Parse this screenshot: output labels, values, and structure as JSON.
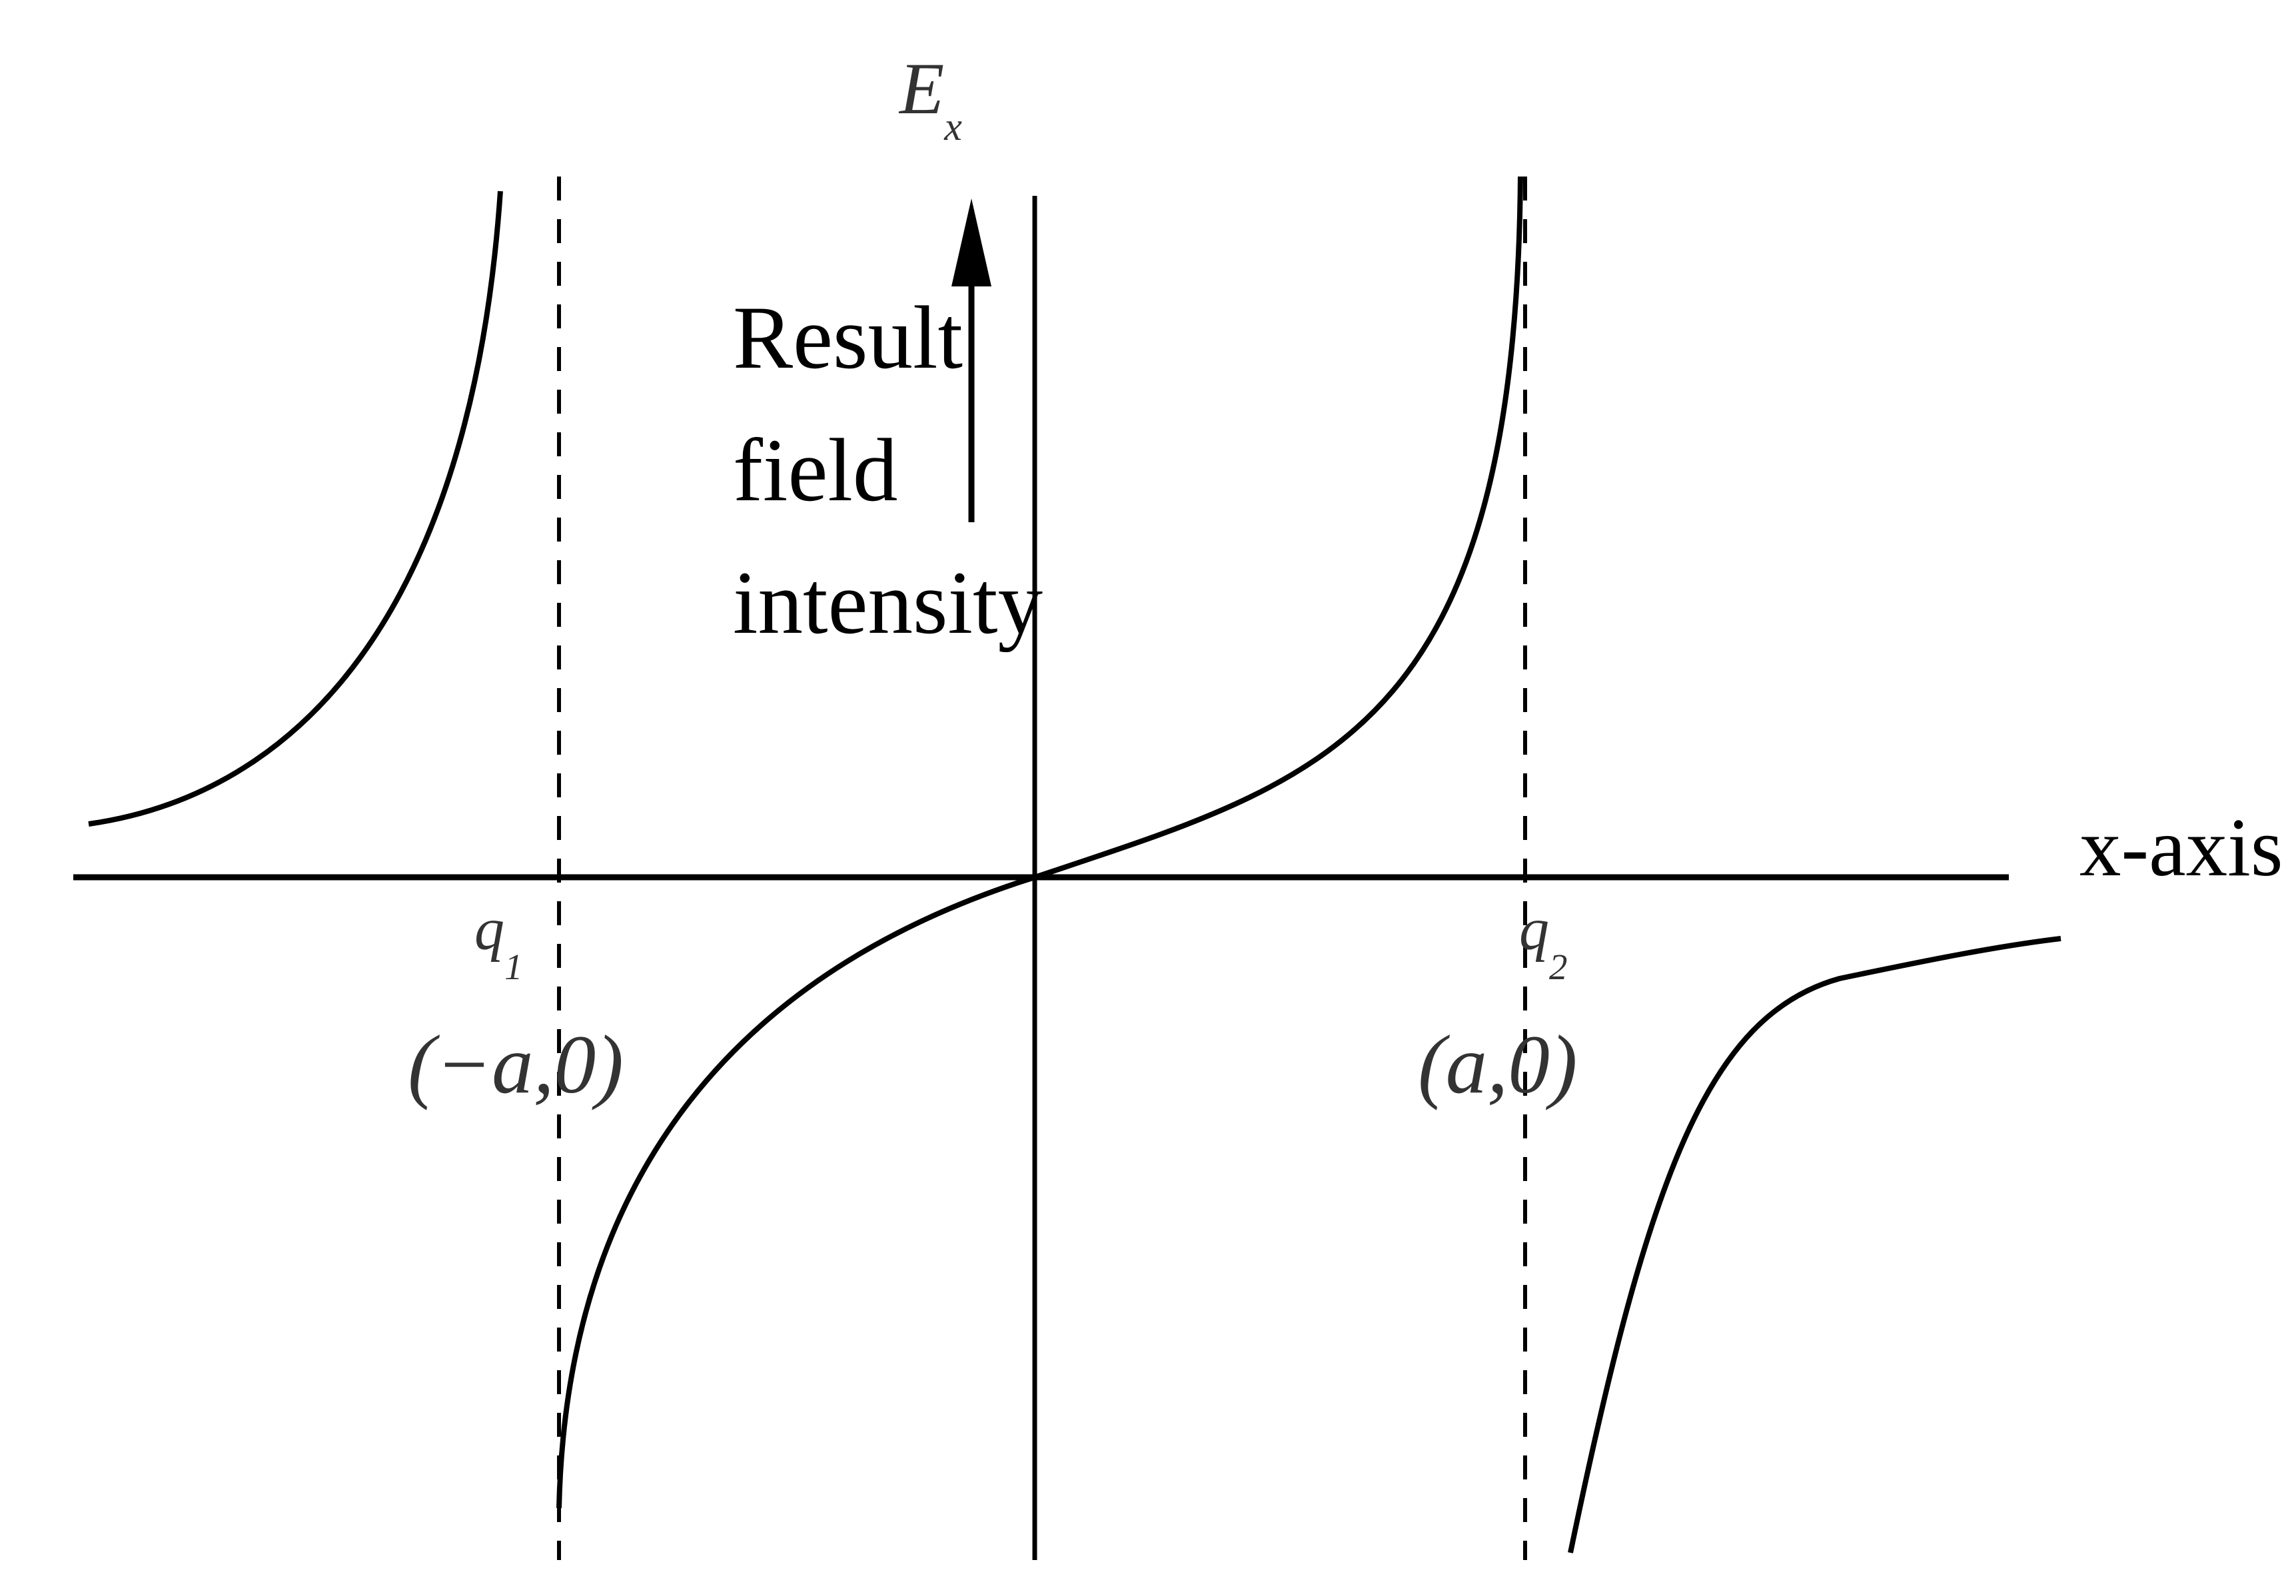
{
  "diagram": {
    "y_axis_label": "E",
    "y_axis_label_subscript": "x",
    "x_axis_label": "x-axis",
    "annotation_lines": [
      "Result",
      "field",
      "intensity"
    ],
    "charges": [
      {
        "label": "q",
        "subscript": "1",
        "position": "(−a,0)"
      },
      {
        "label": "q",
        "subscript": "2",
        "position": "(a,0)"
      }
    ],
    "colors": {
      "stroke": "#000000",
      "background": "#ffffff"
    }
  }
}
